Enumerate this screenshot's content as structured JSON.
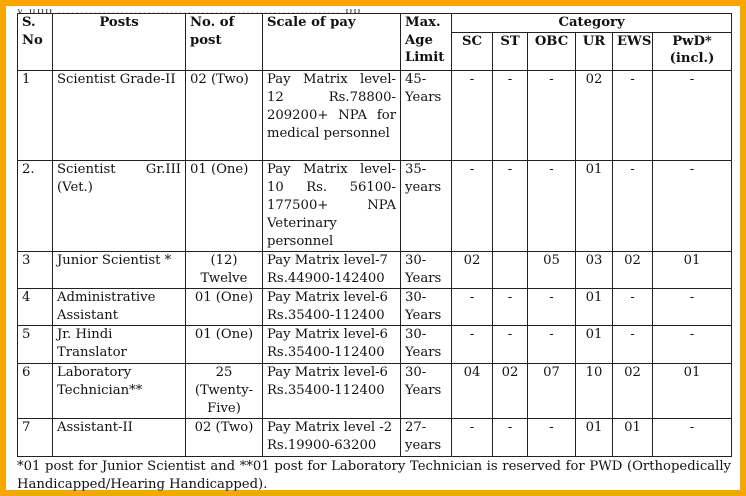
{
  "top_fragment": "y  upp  ............................................................... pp",
  "headers": {
    "sno": "S. No",
    "posts": "Posts",
    "no_of_post": "No. of post",
    "scale": "Scale of pay",
    "max_age": "Max. Age Limit",
    "category": "Category",
    "sc": "SC",
    "st": "ST",
    "obc": "OBC",
    "ur": "UR",
    "ews": "EWS",
    "pwd": "PwD* (incl.)"
  },
  "rows": [
    {
      "sno": "1",
      "post": "Scientist Grade-II",
      "count": "02 (Two)",
      "scale": "Pay Matrix level-12 Rs.78800-209200+ NPA for medical personnel",
      "age": "45-Years",
      "sc": "-",
      "st": "-",
      "obc": "-",
      "ur": "02",
      "ews": "-",
      "pwd": "-"
    },
    {
      "sno": "2.",
      "post": "Scientist Gr.III (Vet.)",
      "count": "01 (One)",
      "scale": "Pay Matrix level-10 Rs. 56100-177500+ NPA Veterinary personnel",
      "age": "35-years",
      "sc": "-",
      "st": "-",
      "obc": "-",
      "ur": "01",
      "ews": "-",
      "pwd": "-"
    },
    {
      "sno": "3",
      "post": "Junior Scientist *",
      "count": "(12) Twelve",
      "scale": "Pay Matrix level-7 Rs.44900-142400",
      "age": "30-Years",
      "sc": "02",
      "st": "",
      "obc": "05",
      "ur": "03",
      "ews": "02",
      "pwd": "01"
    },
    {
      "sno": "4",
      "post": "Administrative Assistant",
      "count": "01 (One)",
      "scale": "Pay Matrix level-6 Rs.35400-112400",
      "age": "30-Years",
      "sc": "-",
      "st": "-",
      "obc": "-",
      "ur": "01",
      "ews": "-",
      "pwd": "-"
    },
    {
      "sno": "5",
      "post": "Jr. Hindi Translator",
      "count": "01 (One)",
      "scale": "Pay Matrix level-6 Rs.35400-112400",
      "age": "30-Years",
      "sc": "-",
      "st": "-",
      "obc": "-",
      "ur": "01",
      "ews": "-",
      "pwd": "-"
    },
    {
      "sno": "6",
      "post": "Laboratory Technician**",
      "count": "25 (Twenty-Five)",
      "scale": "Pay Matrix level-6 Rs.35400-112400",
      "age": "30-Years",
      "sc": "04",
      "st": "02",
      "obc": "07",
      "ur": "10",
      "ews": "02",
      "pwd": "01"
    },
    {
      "sno": "7",
      "post": "Assistant-II",
      "count": "02 (Two)",
      "scale": "Pay Matrix level -2 Rs.19900-63200",
      "age": "27-years",
      "sc": "-",
      "st": "-",
      "obc": "-",
      "ur": "01",
      "ews": "01",
      "pwd": "-"
    }
  ],
  "footnote": "*01 post for Junior Scientist and **01 post for Laboratory Technician is reserved for PWD (Orthopedically Handicapped/Hearing Handicapped).",
  "colors": {
    "frame": "#f6a800",
    "border": "#222222"
  }
}
